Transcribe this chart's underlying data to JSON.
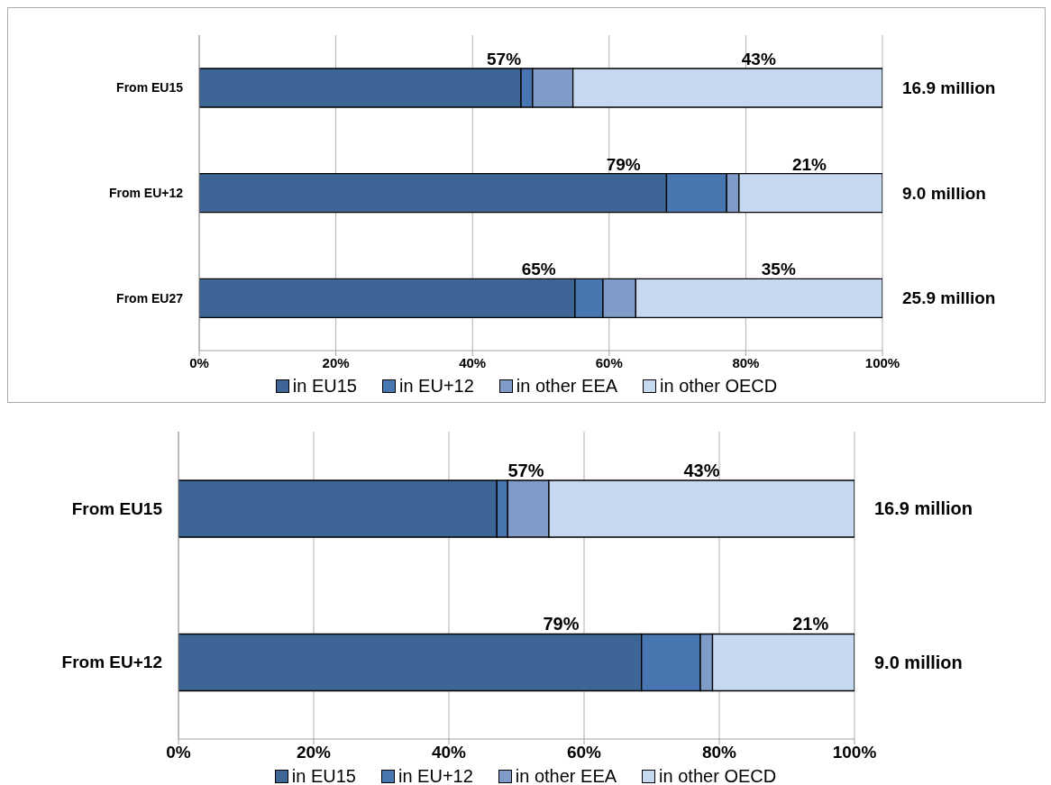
{
  "chart_data": [
    {
      "type": "bar",
      "orientation": "horizontal",
      "stacked": true,
      "categories": [
        "From EU15",
        "From EU+12",
        "From EU27"
      ],
      "series": [
        {
          "name": "in EU15",
          "color": "#3d6696",
          "values": [
            47.1,
            68.4,
            55.0
          ]
        },
        {
          "name": "in EU+12",
          "color": "#4876b0",
          "values": [
            1.7,
            8.8,
            4.1
          ]
        },
        {
          "name": "in other EEA",
          "color": "#7f9cc8",
          "values": [
            5.9,
            1.8,
            4.8
          ]
        },
        {
          "name": "in other OECD",
          "color": "#c6d9f1",
          "values": [
            45.3,
            21.0,
            36.1
          ]
        }
      ],
      "xlim": [
        0,
        100
      ],
      "xticks": [
        {
          "value": 0,
          "label": "0%"
        },
        {
          "value": 20,
          "label": "20%"
        },
        {
          "value": 40,
          "label": "40%"
        },
        {
          "value": 60,
          "label": "60%"
        },
        {
          "value": 80,
          "label": "80%"
        },
        {
          "value": 100,
          "label": "100%"
        }
      ],
      "grid": "x",
      "legend": "bottom",
      "annotations": [
        "57%",
        "43%",
        "79%",
        "21%",
        "65%",
        "35%",
        "16.9 million",
        "9.0 million",
        "25.9 million"
      ]
    },
    {
      "type": "bar",
      "orientation": "horizontal",
      "stacked": true,
      "categories": [
        "From EU15",
        "From EU+12"
      ],
      "series": [
        {
          "name": "in EU15",
          "color": "#3d6696",
          "values": [
            47.1,
            68.5
          ]
        },
        {
          "name": "in EU+12",
          "color": "#4876b0",
          "values": [
            1.6,
            8.7
          ]
        },
        {
          "name": "in other EEA",
          "color": "#7f9cc8",
          "values": [
            6.1,
            1.8
          ]
        },
        {
          "name": "in other OECD",
          "color": "#c6d9f1",
          "values": [
            45.2,
            21.0
          ]
        }
      ],
      "xlim": [
        0,
        100
      ],
      "xticks": [
        {
          "value": 0,
          "label": "0%"
        },
        {
          "value": 20,
          "label": "20%"
        },
        {
          "value": 40,
          "label": "40%"
        },
        {
          "value": 60,
          "label": "60%"
        },
        {
          "value": 80,
          "label": "80%"
        },
        {
          "value": 100,
          "label": "100%"
        }
      ],
      "grid": "x",
      "legend": "bottom",
      "annotations": [
        "57%",
        "43%",
        "79%",
        "21%",
        "16.9 million",
        "9.0 million"
      ]
    }
  ]
}
